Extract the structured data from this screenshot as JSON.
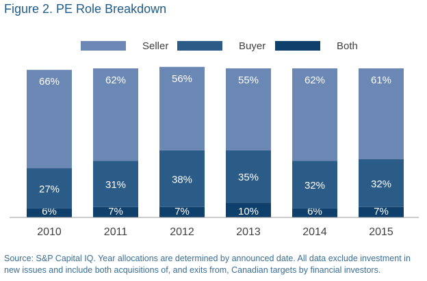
{
  "title": "Figure 2.  PE Role Breakdown",
  "colors": {
    "seller": "#6b88b4",
    "buyer": "#2b5c87",
    "both": "#0f3f6b",
    "label": "#ffffff",
    "axis_text": "#404040"
  },
  "chart_data": {
    "type": "bar",
    "stacked": true,
    "percent": true,
    "title": "Figure 2.  PE Role Breakdown",
    "xlabel": "",
    "ylabel": "",
    "ylim": [
      0,
      100
    ],
    "grid": false,
    "legend_position": "top",
    "categories": [
      "2010",
      "2011",
      "2012",
      "2013",
      "2014",
      "2015"
    ],
    "series": [
      {
        "name": "Both",
        "color": "#0f3f6b",
        "values": [
          6,
          7,
          7,
          10,
          6,
          7
        ],
        "labels": [
          "6%",
          "7%",
          "7%",
          "10%",
          "6%",
          "7%"
        ]
      },
      {
        "name": "Buyer",
        "color": "#2b5c87",
        "values": [
          27,
          31,
          38,
          35,
          32,
          32
        ],
        "labels": [
          "27%",
          "31%",
          "38%",
          "35%",
          "32%",
          "32%"
        ]
      },
      {
        "name": "Seller",
        "color": "#6b88b4",
        "values": [
          66,
          62,
          56,
          55,
          62,
          61
        ],
        "labels": [
          "66%",
          "62%",
          "56%",
          "55%",
          "62%",
          "61%"
        ]
      }
    ]
  },
  "legend": [
    {
      "label": "Seller",
      "color": "#6b88b4"
    },
    {
      "label": "Buyer",
      "color": "#2b5c87"
    },
    {
      "label": "Both",
      "color": "#0f3f6b"
    }
  ],
  "source": "Source: S&P Capital IQ. Year allocations are determined by announced date. All data exclude investment in new issues and include both acquisitions of, and exits from, Canadian targets by financial investors."
}
